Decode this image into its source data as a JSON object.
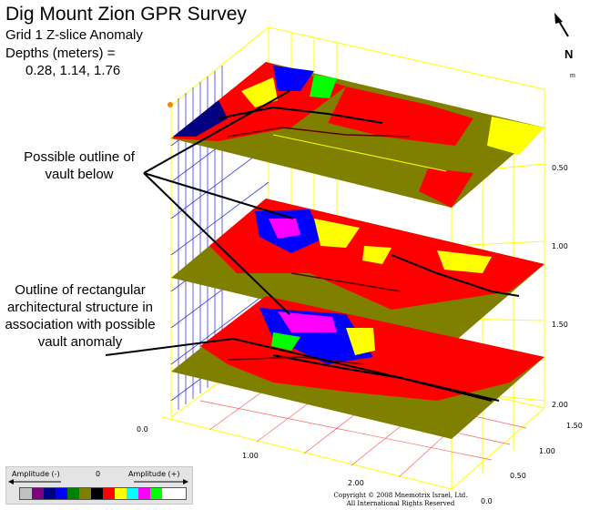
{
  "title": "Dig Mount Zion GPR Survey",
  "subtitle": "Grid 1 Z-slice Anomaly",
  "depths_label": "Depths (meters) =",
  "depths_values": "0.28, 1.14, 1.76",
  "north_label": "N",
  "unit_label": "m",
  "annotation_vault": "Possible outline of vault below",
  "annotation_structure": "Outline of rectangular architectural structure in association with possible vault anomaly",
  "ticks": {
    "right_depth": [
      "0.50",
      "1.00",
      "1.50",
      "2.00"
    ],
    "front_x": [
      "0.0",
      "1.00",
      "2.00"
    ],
    "right_y": [
      "1.50",
      "1.00",
      "0.50",
      "0.0"
    ]
  },
  "legend": {
    "left_label": "Amplitude (-)",
    "center_label": "0",
    "right_label": "Amplitude (+)",
    "colors": [
      "#c0c0c0",
      "#800080",
      "#000080",
      "#0000ff",
      "#008000",
      "#808000",
      "#000000",
      "#ff0000",
      "#ffff00",
      "#00ffff",
      "#ff00ff",
      "#00ff00",
      "#ffffff",
      "#ffffff"
    ]
  },
  "copyright": "Copyright © 2008 Mnemotrix Israel, Ltd.",
  "rights": "All International Rights Reserved",
  "colors": {
    "frame": "#ffff00",
    "grid_blue": "#0000cc",
    "slice_base": "#808000",
    "anomaly_red": "#ff0000"
  }
}
